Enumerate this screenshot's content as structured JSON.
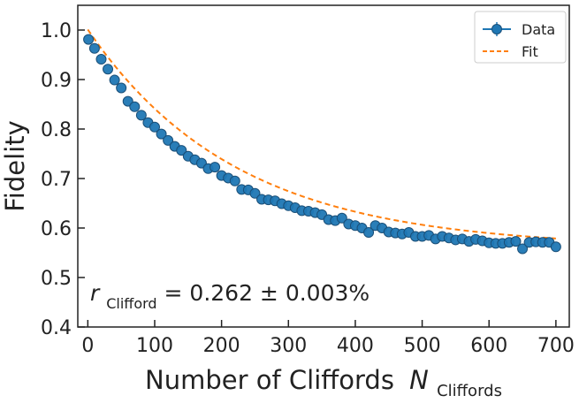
{
  "chart_data": {
    "type": "scatter",
    "xlabel": "Number of Cliffords",
    "xlabel_var": "N",
    "xlabel_sub": "Cliffords",
    "ylabel": "Fidelity",
    "xlim": [
      -15,
      720
    ],
    "ylim": [
      0.4,
      1.05
    ],
    "xticks": [
      0,
      100,
      200,
      300,
      400,
      500,
      600,
      700
    ],
    "yticks": [
      0.4,
      0.5,
      0.6,
      0.7,
      0.8,
      0.9,
      1.0
    ],
    "xtick_labels": [
      "0",
      "100",
      "200",
      "300",
      "400",
      "500",
      "600",
      "700"
    ],
    "ytick_labels": [
      "0.4",
      "0.5",
      "0.6",
      "0.7",
      "0.8",
      "0.9",
      "1.0"
    ],
    "grid": false,
    "legend": {
      "position": "top-right",
      "entries": [
        "Data",
        "Fit"
      ]
    },
    "annotation": {
      "var": "r",
      "sub": "Clifford",
      "text": " = 0.262 ± 0.003%"
    },
    "colors": {
      "data": "#1f77b4",
      "fit": "#ff7f0e"
    },
    "series": [
      {
        "name": "Data",
        "style": "markers-with-errorbars",
        "x": [
          1,
          10,
          20,
          30,
          40,
          50,
          60,
          70,
          80,
          90,
          100,
          110,
          120,
          130,
          140,
          150,
          160,
          170,
          180,
          190,
          200,
          210,
          220,
          230,
          240,
          250,
          260,
          270,
          280,
          290,
          300,
          310,
          320,
          330,
          340,
          350,
          360,
          370,
          380,
          390,
          400,
          410,
          420,
          430,
          440,
          450,
          460,
          470,
          480,
          490,
          500,
          510,
          520,
          530,
          540,
          550,
          560,
          570,
          580,
          590,
          600,
          610,
          620,
          630,
          640,
          650,
          660,
          670,
          680,
          690,
          700
        ],
        "y": [
          0.981,
          0.963,
          0.941,
          0.921,
          0.899,
          0.883,
          0.856,
          0.845,
          0.828,
          0.813,
          0.804,
          0.79,
          0.777,
          0.765,
          0.757,
          0.745,
          0.738,
          0.731,
          0.72,
          0.723,
          0.706,
          0.701,
          0.695,
          0.678,
          0.677,
          0.67,
          0.658,
          0.657,
          0.655,
          0.649,
          0.645,
          0.641,
          0.635,
          0.634,
          0.631,
          0.627,
          0.617,
          0.615,
          0.62,
          0.608,
          0.605,
          0.6,
          0.591,
          0.605,
          0.6,
          0.592,
          0.59,
          0.588,
          0.591,
          0.583,
          0.583,
          0.585,
          0.578,
          0.583,
          0.58,
          0.576,
          0.578,
          0.573,
          0.577,
          0.574,
          0.57,
          0.569,
          0.569,
          0.571,
          0.573,
          0.558,
          0.571,
          0.572,
          0.571,
          0.571,
          0.562
        ]
      },
      {
        "name": "Fit",
        "style": "dashed-line",
        "model": "A*p^x + B",
        "params": {
          "A": 0.441,
          "p": 0.99551,
          "B": 0.56
        },
        "x_range": [
          0,
          700
        ]
      }
    ]
  }
}
